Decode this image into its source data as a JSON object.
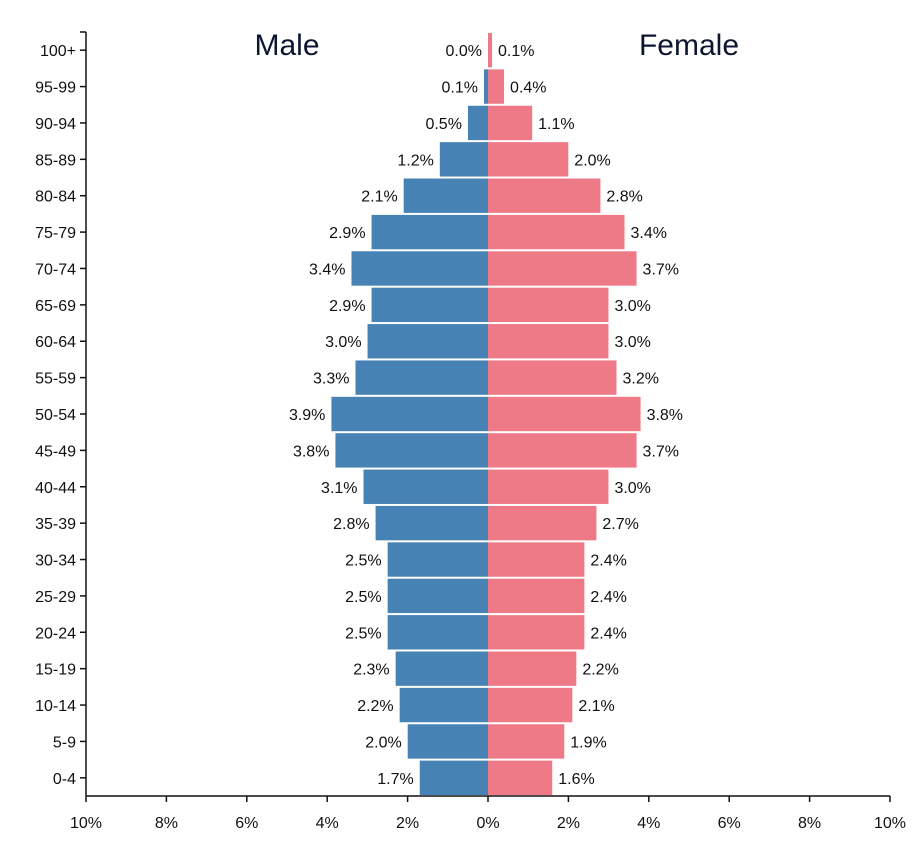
{
  "chart_data": {
    "type": "bar",
    "orientation": "horizontal",
    "layout": "population-pyramid",
    "categories": [
      "100+",
      "95-99",
      "90-94",
      "85-89",
      "80-84",
      "75-79",
      "70-74",
      "65-69",
      "60-64",
      "55-59",
      "50-54",
      "45-49",
      "40-44",
      "35-39",
      "30-34",
      "25-29",
      "20-24",
      "15-19",
      "10-14",
      "5-9",
      "0-4"
    ],
    "series": [
      {
        "name": "Male",
        "color": "#4682b4",
        "values": [
          0.0,
          0.1,
          0.5,
          1.2,
          2.1,
          2.9,
          3.4,
          2.9,
          3.0,
          3.3,
          3.9,
          3.8,
          3.1,
          2.8,
          2.5,
          2.5,
          2.5,
          2.3,
          2.2,
          2.0,
          1.7
        ],
        "labels": [
          "0.0%",
          "0.1%",
          "0.5%",
          "1.2%",
          "2.1%",
          "2.9%",
          "3.4%",
          "2.9%",
          "3.0%",
          "3.3%",
          "3.9%",
          "3.8%",
          "3.1%",
          "2.8%",
          "2.5%",
          "2.5%",
          "2.5%",
          "2.3%",
          "2.2%",
          "2.0%",
          "1.7%"
        ]
      },
      {
        "name": "Female",
        "color": "#ef7a87",
        "values": [
          0.1,
          0.4,
          1.1,
          2.0,
          2.8,
          3.4,
          3.7,
          3.0,
          3.0,
          3.2,
          3.8,
          3.7,
          3.0,
          2.7,
          2.4,
          2.4,
          2.4,
          2.2,
          2.1,
          1.9,
          1.6
        ],
        "labels": [
          "0.1%",
          "0.4%",
          "1.1%",
          "2.0%",
          "2.8%",
          "3.4%",
          "3.7%",
          "3.0%",
          "3.0%",
          "3.2%",
          "3.8%",
          "3.7%",
          "3.0%",
          "2.7%",
          "2.4%",
          "2.4%",
          "2.4%",
          "2.2%",
          "2.1%",
          "1.9%",
          "1.6%"
        ]
      }
    ],
    "xlim": [
      -10,
      10
    ],
    "x_ticks": [
      "10%",
      "8%",
      "6%",
      "4%",
      "2%",
      "0%",
      "2%",
      "4%",
      "6%",
      "8%",
      "10%"
    ],
    "grid": false,
    "legend": "none",
    "side_titles": {
      "left": "Male",
      "right": "Female"
    }
  }
}
